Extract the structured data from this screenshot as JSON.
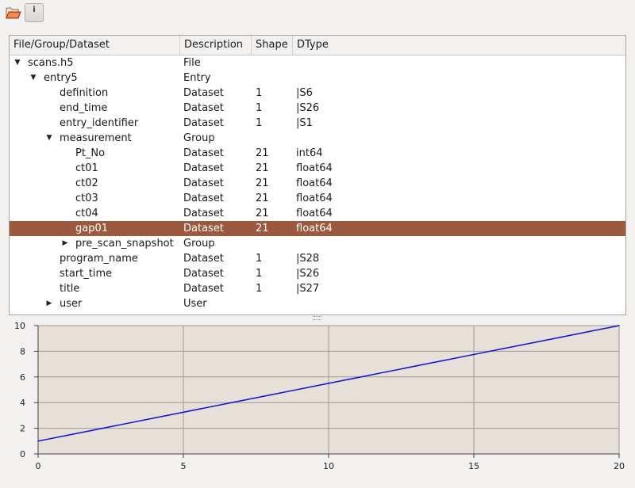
{
  "toolbar": {
    "open_icon": "folder-open-icon",
    "info_icon": "info-icon",
    "info_glyph": "i"
  },
  "tree": {
    "columns": [
      "File/Group/Dataset",
      "Description",
      "Shape",
      "DType"
    ],
    "rows": [
      {
        "name": "scans.h5",
        "desc": "File",
        "shape": "",
        "dtype": "",
        "level": 0,
        "arrow": "expanded"
      },
      {
        "name": "entry5",
        "desc": "Entry",
        "shape": "",
        "dtype": "",
        "level": 1,
        "arrow": "expanded"
      },
      {
        "name": "definition",
        "desc": "Dataset",
        "shape": "1",
        "dtype": "|S6",
        "level": 2,
        "arrow": "none"
      },
      {
        "name": "end_time",
        "desc": "Dataset",
        "shape": "1",
        "dtype": "|S26",
        "level": 2,
        "arrow": "none"
      },
      {
        "name": "entry_identifier",
        "desc": "Dataset",
        "shape": "1",
        "dtype": "|S1",
        "level": 2,
        "arrow": "none"
      },
      {
        "name": "measurement",
        "desc": "Group",
        "shape": "",
        "dtype": "",
        "level": 2,
        "arrow": "expanded"
      },
      {
        "name": "Pt_No",
        "desc": "Dataset",
        "shape": "21",
        "dtype": "int64",
        "level": 3,
        "arrow": "none"
      },
      {
        "name": "ct01",
        "desc": "Dataset",
        "shape": "21",
        "dtype": "float64",
        "level": 3,
        "arrow": "none"
      },
      {
        "name": "ct02",
        "desc": "Dataset",
        "shape": "21",
        "dtype": "float64",
        "level": 3,
        "arrow": "none"
      },
      {
        "name": "ct03",
        "desc": "Dataset",
        "shape": "21",
        "dtype": "float64",
        "level": 3,
        "arrow": "none"
      },
      {
        "name": "ct04",
        "desc": "Dataset",
        "shape": "21",
        "dtype": "float64",
        "level": 3,
        "arrow": "none"
      },
      {
        "name": "gap01",
        "desc": "Dataset",
        "shape": "21",
        "dtype": "float64",
        "level": 3,
        "arrow": "none",
        "selected": true
      },
      {
        "name": "pre_scan_snapshot",
        "desc": "Group",
        "shape": "",
        "dtype": "",
        "level": 3,
        "arrow": "collapsed"
      },
      {
        "name": "program_name",
        "desc": "Dataset",
        "shape": "1",
        "dtype": "|S28",
        "level": 2,
        "arrow": "none"
      },
      {
        "name": "start_time",
        "desc": "Dataset",
        "shape": "1",
        "dtype": "|S26",
        "level": 2,
        "arrow": "none"
      },
      {
        "name": "title",
        "desc": "Dataset",
        "shape": "1",
        "dtype": "|S27",
        "level": 2,
        "arrow": "none"
      },
      {
        "name": "user",
        "desc": "User",
        "shape": "",
        "dtype": "",
        "level": 2,
        "arrow": "collapsed"
      }
    ],
    "colors": {
      "selection": "#9b5a3e"
    }
  },
  "chart_data": {
    "type": "line",
    "title": "",
    "xlabel": "",
    "ylabel": "",
    "xlim": [
      0,
      20
    ],
    "ylim": [
      0,
      10
    ],
    "xticks": [
      0,
      5,
      10,
      15,
      20
    ],
    "yticks": [
      0,
      2,
      4,
      6,
      8,
      10
    ],
    "grid": true,
    "series": [
      {
        "color": "#1010d0",
        "x": [
          0,
          1,
          2,
          3,
          4,
          5,
          6,
          7,
          8,
          9,
          10,
          11,
          12,
          13,
          14,
          15,
          16,
          17,
          18,
          19,
          20
        ],
        "values": [
          1.0,
          1.45,
          1.9,
          2.35,
          2.8,
          3.25,
          3.7,
          4.15,
          4.6,
          5.05,
          5.5,
          5.95,
          6.4,
          6.85,
          7.3,
          7.75,
          8.2,
          8.65,
          9.1,
          9.55,
          10.0
        ]
      }
    ]
  }
}
